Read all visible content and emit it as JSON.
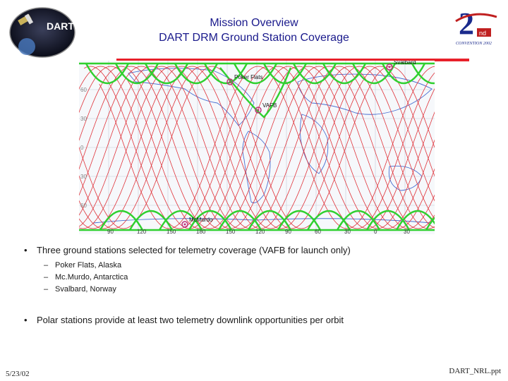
{
  "header": {
    "title_line1": "Mission Overview",
    "title_line2": "DART DRM Ground Station Coverage"
  },
  "logos": {
    "left_text": "DART",
    "right_mark": "2",
    "right_sup": "nd",
    "right_caption": "CONVENTION 2002"
  },
  "map": {
    "lat_labels": [
      "60",
      "30",
      "0",
      "30",
      "60"
    ],
    "lon_labels": [
      "90",
      "120",
      "150",
      "180",
      "150",
      "120",
      "90",
      "60",
      "30",
      "0",
      "30"
    ],
    "stations": [
      {
        "name": "Svalbard"
      },
      {
        "name": "Poker Flats"
      },
      {
        "name": "VAFB"
      },
      {
        "name": "McMurdo"
      }
    ],
    "colors": {
      "coverage": "#2fd02f",
      "ground_track": "#e0333a",
      "land": "#4a6fd0"
    }
  },
  "bullets": {
    "b1": "Three ground stations selected for telemetry coverage (VAFB for launch only)",
    "subs": [
      "Poker Flats, Alaska",
      "Mc.Murdo, Antarctica",
      "Svalbard, Norway"
    ],
    "b2": "Polar stations provide at least two telemetry downlink opportunities per orbit"
  },
  "footer": {
    "date": "5/23/02",
    "filename": "DART_NRL.ppt"
  }
}
